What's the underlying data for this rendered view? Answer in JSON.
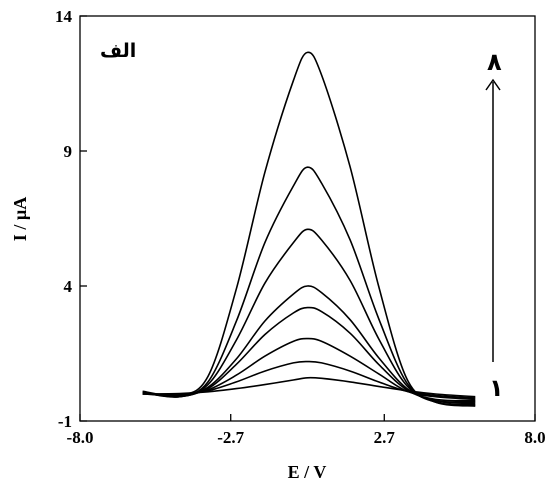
{
  "chart_data": {
    "type": "line",
    "title": "",
    "panel_label": "الف",
    "xlabel": "E / V",
    "ylabel": "I / µA",
    "xlim": [
      -8.0,
      8.0
    ],
    "ylim": [
      -1,
      14
    ],
    "xticks": [
      -8.0,
      -2.7,
      2.7,
      8.0
    ],
    "xtick_labels": [
      "-8.0",
      "-2.7",
      "2.7",
      "8.0"
    ],
    "yticks": [
      -1,
      4,
      9,
      14
    ],
    "ytick_labels": [
      "-1",
      "4",
      "9",
      "14"
    ],
    "grid": false,
    "legend": "none",
    "arrow": {
      "from_label": "۱",
      "to_label": "۸"
    },
    "series": [
      {
        "x": [
          -5.8,
          -4.5,
          -3.5,
          -2.5,
          -1.5,
          -0.5,
          0.0,
          0.5,
          1.5,
          2.5,
          3.5,
          4.5,
          5.9
        ],
        "y": [
          0.0,
          0.02,
          0.08,
          0.2,
          0.35,
          0.52,
          0.6,
          0.58,
          0.45,
          0.28,
          0.12,
          0.0,
          -0.1
        ]
      },
      {
        "x": [
          -5.8,
          -4.5,
          -3.5,
          -2.5,
          -1.5,
          -0.5,
          0.0,
          0.5,
          1.5,
          2.5,
          3.5,
          4.5,
          5.9
        ],
        "y": [
          0.0,
          0.0,
          0.12,
          0.45,
          0.85,
          1.15,
          1.2,
          1.15,
          0.85,
          0.45,
          0.1,
          -0.05,
          -0.15
        ]
      },
      {
        "x": [
          -5.8,
          -4.5,
          -3.5,
          -2.5,
          -1.5,
          -0.5,
          0.0,
          0.5,
          1.5,
          2.5,
          3.5,
          4.5,
          5.9
        ],
        "y": [
          0.0,
          -0.05,
          0.15,
          0.7,
          1.4,
          1.95,
          2.05,
          1.95,
          1.4,
          0.75,
          0.1,
          -0.1,
          -0.2
        ]
      },
      {
        "x": [
          -5.8,
          -4.5,
          -3.5,
          -2.5,
          -1.5,
          -0.5,
          0.0,
          0.5,
          1.5,
          2.5,
          3.5,
          4.5,
          5.9
        ],
        "y": [
          0.05,
          -0.05,
          0.2,
          1.1,
          2.2,
          3.0,
          3.2,
          3.05,
          2.25,
          1.1,
          0.15,
          -0.2,
          -0.25
        ]
      },
      {
        "x": [
          -5.8,
          -4.5,
          -3.5,
          -2.5,
          -1.5,
          -0.5,
          0.0,
          0.5,
          1.5,
          2.5,
          3.5,
          4.5,
          5.9
        ],
        "y": [
          0.05,
          -0.1,
          0.25,
          1.3,
          2.7,
          3.7,
          4.0,
          3.75,
          2.75,
          1.35,
          0.2,
          -0.25,
          -0.3
        ]
      },
      {
        "x": [
          -5.8,
          -4.5,
          -3.5,
          -2.5,
          -1.5,
          -0.5,
          0.0,
          0.5,
          1.5,
          2.5,
          3.5,
          4.5,
          5.9
        ],
        "y": [
          0.05,
          -0.1,
          0.35,
          2.0,
          4.1,
          5.6,
          6.1,
          5.7,
          4.2,
          2.05,
          0.3,
          -0.25,
          -0.35
        ]
      },
      {
        "x": [
          -5.8,
          -4.5,
          -3.5,
          -2.5,
          -1.5,
          -0.5,
          0.0,
          0.5,
          1.5,
          2.5,
          3.5,
          4.5,
          5.9
        ],
        "y": [
          0.05,
          -0.1,
          0.45,
          2.7,
          5.6,
          7.7,
          8.4,
          7.8,
          5.7,
          2.8,
          0.4,
          -0.3,
          -0.4
        ]
      },
      {
        "x": [
          -5.8,
          -4.5,
          -3.5,
          -2.5,
          -1.5,
          -0.5,
          0.0,
          0.5,
          1.5,
          2.5,
          3.5,
          4.5,
          5.9
        ],
        "y": [
          0.1,
          -0.05,
          0.65,
          3.9,
          8.2,
          11.6,
          12.65,
          11.8,
          8.4,
          4.0,
          0.55,
          -0.3,
          -0.45
        ]
      }
    ]
  }
}
